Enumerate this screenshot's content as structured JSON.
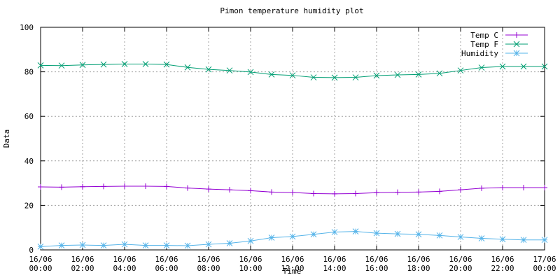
{
  "chart_data": {
    "type": "line",
    "title": "Pimon temperature   humidity plot",
    "x_label": "Time",
    "y_label": "Data",
    "x": [
      "16/06 00:00",
      "16/06 01:00",
      "16/06 02:00",
      "16/06 03:00",
      "16/06 04:00",
      "16/06 05:00",
      "16/06 06:00",
      "16/06 07:00",
      "16/06 08:00",
      "16/06 09:00",
      "16/06 10:00",
      "16/06 11:00",
      "16/06 12:00",
      "16/06 13:00",
      "16/06 14:00",
      "16/06 15:00",
      "16/06 16:00",
      "16/06 17:00",
      "16/06 18:00",
      "16/06 19:00",
      "16/06 20:00",
      "16/06 21:00",
      "16/06 22:00",
      "16/06 23:00",
      "17/06 00:00"
    ],
    "xticks": [
      "16/06 00:00",
      "16/06 02:00",
      "16/06 04:00",
      "16/06 06:00",
      "16/06 08:00",
      "16/06 10:00",
      "16/06 12:00",
      "16/06 14:00",
      "16/06 16:00",
      "16/06 18:00",
      "16/06 20:00",
      "16/06 22:00",
      "17/06 00:00"
    ],
    "ylim": [
      0,
      100
    ],
    "yticks": [
      0,
      20,
      40,
      60,
      80,
      100
    ],
    "grid": true,
    "legend": "top-right",
    "series": [
      {
        "name": "Temp C",
        "color": "#9400d3",
        "marker": "plus",
        "values": [
          28.3,
          28.2,
          28.4,
          28.5,
          28.6,
          28.6,
          28.5,
          27.8,
          27.3,
          27.0,
          26.6,
          26.0,
          25.8,
          25.3,
          25.2,
          25.3,
          25.7,
          25.9,
          26.0,
          26.3,
          27.0,
          27.7,
          28.0,
          28.0,
          28.0
        ]
      },
      {
        "name": "Temp F",
        "color": "#009e73",
        "marker": "cross",
        "values": [
          82.9,
          82.8,
          83.1,
          83.3,
          83.5,
          83.5,
          83.3,
          82.0,
          81.1,
          80.6,
          79.9,
          78.8,
          78.4,
          77.5,
          77.4,
          77.5,
          78.3,
          78.6,
          78.8,
          79.3,
          80.6,
          81.9,
          82.4,
          82.4,
          82.4
        ]
      },
      {
        "name": "Humidity",
        "color": "#56b4e9",
        "marker": "star",
        "values": [
          1.5,
          2.0,
          2.2,
          2.0,
          2.5,
          2.0,
          2.0,
          1.9,
          2.5,
          3.0,
          4.0,
          5.5,
          6.0,
          7.0,
          8.0,
          8.3,
          7.5,
          7.2,
          7.0,
          6.5,
          5.8,
          5.2,
          4.8,
          4.5,
          4.5
        ]
      }
    ]
  }
}
